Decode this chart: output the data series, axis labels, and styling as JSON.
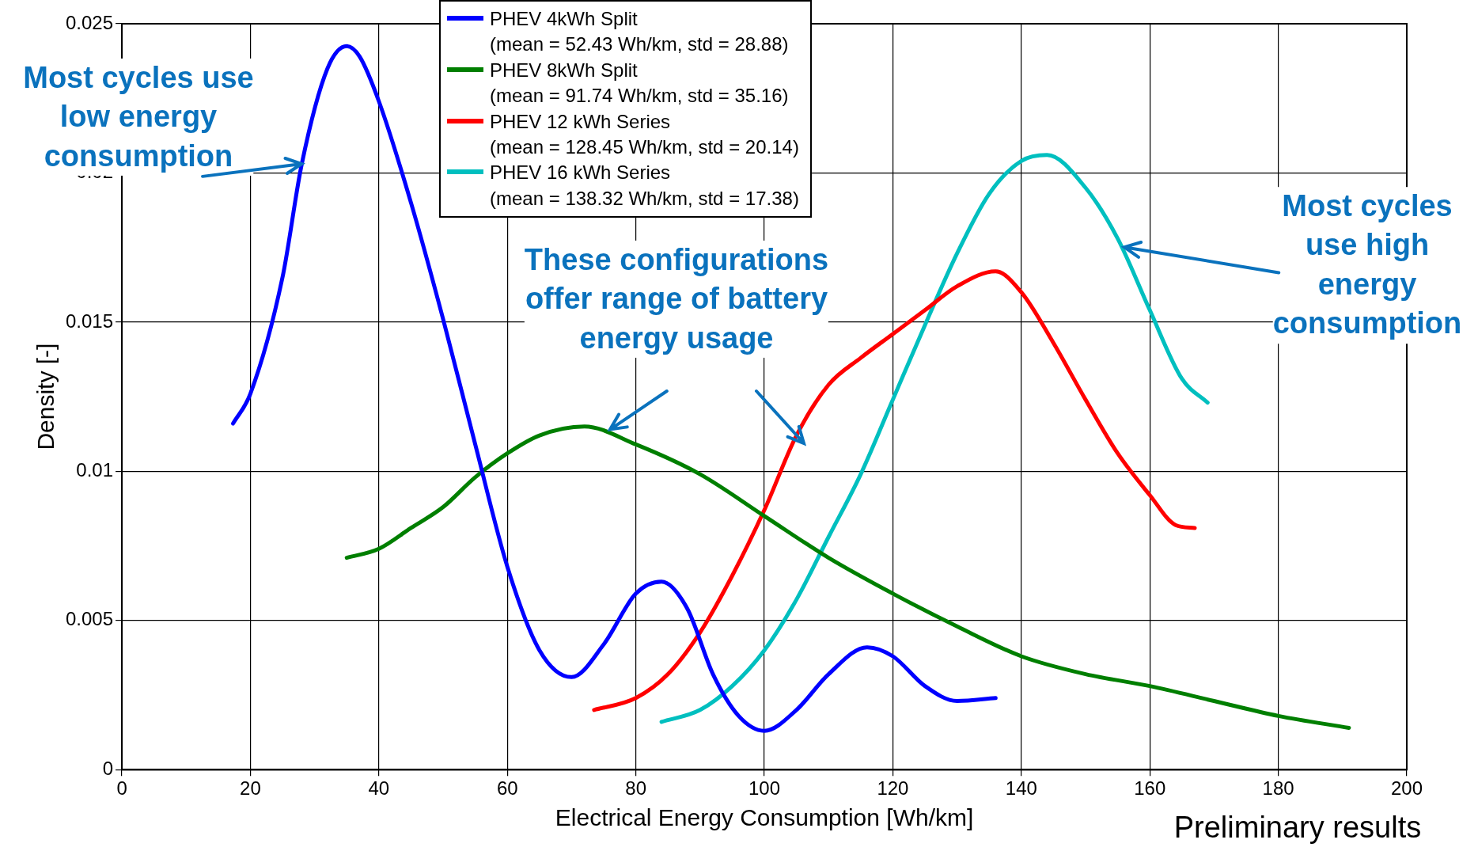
{
  "chart_data": {
    "type": "line",
    "xlabel": "Electrical Energy Consumption [Wh/km]",
    "ylabel": "Density [-]",
    "xlim": [
      0,
      200
    ],
    "xticks": [
      0,
      20,
      40,
      60,
      80,
      100,
      120,
      140,
      160,
      180,
      200
    ],
    "ylim": [
      0,
      0.025
    ],
    "yticks": [
      0,
      0.005,
      0.01,
      0.015,
      0.02,
      0.025
    ],
    "grid": true,
    "legend": "top",
    "marker": "none",
    "line_style": "solid",
    "annotations": [
      {
        "text": "Most cycles use\nlow energy\nconsumption",
        "x": 28,
        "y": 0.0203
      },
      {
        "text": "These configurations\noffer range of battery\nenergy usage",
        "x": 76,
        "y": 0.0114
      },
      {
        "text": "Most cycles\nuse high\nenergy\nconsumption",
        "x": 156,
        "y": 0.0175
      },
      "Preliminary results"
    ],
    "series": [
      {
        "name": "PHEV 4kWh Split\n(mean = 52.43 Wh/km, std = 28.88)",
        "color": "#0000ff",
        "x": [
          17.3,
          20,
          25,
          28,
          32,
          35,
          37,
          40,
          45,
          50,
          55,
          60,
          65,
          70,
          75,
          80,
          84,
          88,
          92,
          96,
          100,
          105,
          110,
          116,
          120,
          125,
          130,
          136
        ],
        "values": [
          0.0116,
          0.0126,
          0.0165,
          0.0203,
          0.0235,
          0.02425,
          0.0239,
          0.0224,
          0.019,
          0.0151,
          0.0109,
          0.0068,
          0.004,
          0.0031,
          0.0042,
          0.0059,
          0.0063,
          0.0054,
          0.0032,
          0.0018,
          0.0013,
          0.002,
          0.0032,
          0.0041,
          0.0038,
          0.0028,
          0.0023,
          0.0024
        ]
      },
      {
        "name": "PHEV 8kWh Split\n(mean = 91.74 Wh/km, std = 35.16)",
        "color": "#007f00",
        "x": [
          35,
          40,
          45,
          50,
          55,
          60,
          65,
          72,
          80,
          90,
          100,
          110,
          120,
          130,
          140,
          150,
          160,
          170,
          180,
          191
        ],
        "values": [
          0.0071,
          0.0074,
          0.0081,
          0.0088,
          0.0098,
          0.0106,
          0.0112,
          0.0115,
          0.0109,
          0.0099,
          0.0085,
          0.0071,
          0.0059,
          0.0048,
          0.0038,
          0.0032,
          0.0028,
          0.0023,
          0.0018,
          0.0014
        ]
      },
      {
        "name": "PHEV 12 kWh Series\n(mean = 128.45 Wh/km, std = 20.14)",
        "color": "#ff0000",
        "x": [
          73.5,
          80,
          85,
          90,
          95,
          100,
          105,
          110,
          115,
          120,
          125,
          130,
          136,
          140,
          145,
          150,
          155,
          160,
          164,
          167
        ],
        "values": [
          0.002,
          0.0024,
          0.0032,
          0.0046,
          0.0065,
          0.0087,
          0.0112,
          0.0129,
          0.0138,
          0.0146,
          0.0154,
          0.0162,
          0.0167,
          0.016,
          0.0143,
          0.0124,
          0.0106,
          0.0092,
          0.0082,
          0.0081
        ]
      },
      {
        "name": "PHEV 16 kWh Series\n(mean = 138.32 Wh/km, std = 17.38)",
        "color": "#00bfbf",
        "x": [
          84,
          90,
          95,
          100,
          105,
          110,
          115,
          120,
          125,
          130,
          135,
          140,
          144,
          150,
          155,
          160,
          165,
          169
        ],
        "values": [
          0.0016,
          0.002,
          0.0028,
          0.004,
          0.0057,
          0.0078,
          0.0099,
          0.0124,
          0.0149,
          0.0173,
          0.0193,
          0.0204,
          0.0206,
          0.0195,
          0.0178,
          0.0154,
          0.0131,
          0.0123
        ]
      }
    ]
  }
}
